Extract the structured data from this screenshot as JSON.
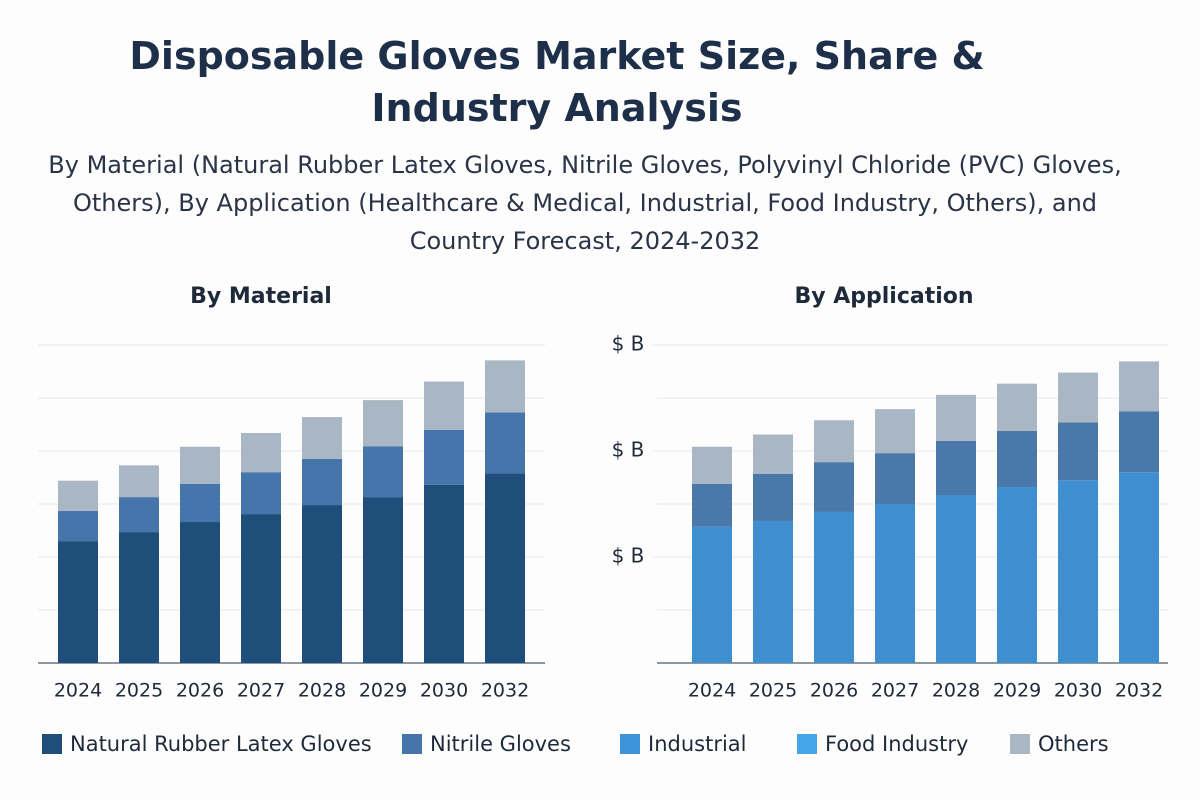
{
  "title": "Disposable Gloves Market Size, Share & Industry Analysis",
  "subtitle": "By Material (Natural Rubber Latex Gloves, Nitrile Gloves, Polyvinyl Chloride (PVC) Gloves, Others), By Application (Healthcare & Medical, Industrial, Food Industry, Others), and Country Forecast, 2024-2032",
  "legend": [
    {
      "name": "Natural Rubber Latex Gloves",
      "color": "#1f4e7a"
    },
    {
      "name": "Nitrile Gloves",
      "color": "#4675ab"
    },
    {
      "name": "Industrial",
      "color": "#3e93d6"
    },
    {
      "name": "Food Industry",
      "color": "#45a5e6"
    },
    {
      "name": "Others",
      "color": "#a9b6c3"
    }
  ],
  "chart_data": [
    {
      "type": "stacked_bar",
      "title": "By Material",
      "categories": [
        "2024",
        "2025",
        "2026",
        "2027",
        "2028",
        "2029",
        "2030",
        "2032"
      ],
      "series": [
        {
          "color": "#1f4e7a",
          "values": [
            2.3,
            2.47,
            2.66,
            2.81,
            2.98,
            3.13,
            3.36,
            3.58
          ]
        },
        {
          "color": "#4675ab",
          "values": [
            0.57,
            0.66,
            0.72,
            0.79,
            0.87,
            0.96,
            1.04,
            1.15
          ]
        },
        {
          "color": "#a9b6c3",
          "values": [
            0.57,
            0.6,
            0.7,
            0.74,
            0.79,
            0.87,
            0.91,
            0.98
          ]
        }
      ],
      "ylim": [
        0,
        6
      ],
      "grid_values": [
        1,
        2,
        3,
        4,
        5,
        6
      ]
    },
    {
      "type": "stacked_bar",
      "title": "By Application",
      "categories": [
        "2024",
        "2025",
        "2026",
        "2027",
        "2028",
        "2029",
        "2030",
        "2032"
      ],
      "series": [
        {
          "color": "#3f8fd0",
          "values": [
            2.57,
            2.68,
            2.85,
            3.0,
            3.17,
            3.32,
            3.45,
            3.6
          ]
        },
        {
          "color": "#4a78a8",
          "values": [
            0.81,
            0.89,
            0.94,
            0.96,
            1.02,
            1.06,
            1.09,
            1.15
          ]
        },
        {
          "color": "#a9b6c3",
          "values": [
            0.7,
            0.74,
            0.79,
            0.83,
            0.87,
            0.89,
            0.94,
            0.94
          ]
        }
      ],
      "ylim": [
        0,
        6
      ],
      "grid_values": [
        1,
        2,
        3,
        4,
        5,
        6
      ],
      "yticks": [
        {
          "value": 2,
          "label": "$ B"
        },
        {
          "value": 4,
          "label": "$ B"
        },
        {
          "value": 6,
          "label": "$ B"
        }
      ]
    }
  ]
}
